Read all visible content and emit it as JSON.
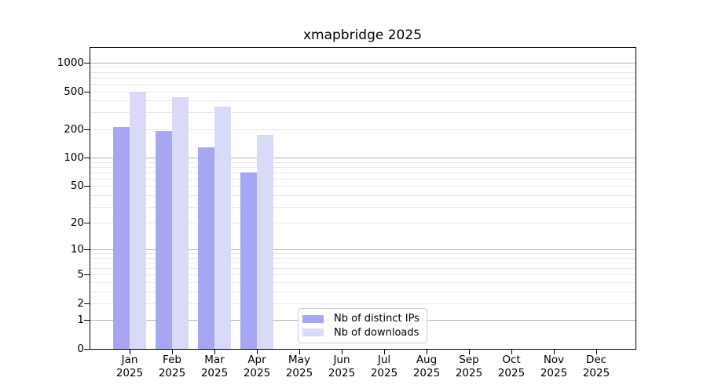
{
  "title": "xmapbridge 2025",
  "chart_data": {
    "type": "bar",
    "title": "xmapbridge 2025",
    "y_scale": "log10(1+x)",
    "ylim": [
      0,
      1000
    ],
    "grid": "horizontal, minor lines at 2-9 per decade, major lines at 1/10/100/1000",
    "legend_position": "inside bottom-center",
    "year": "2025",
    "categories": [
      "Jan",
      "Feb",
      "Mar",
      "Apr",
      "May",
      "Jun",
      "Jul",
      "Aug",
      "Sep",
      "Oct",
      "Nov",
      "Dec"
    ],
    "y_ticks": [
      0,
      1,
      2,
      5,
      10,
      20,
      50,
      100,
      200,
      500,
      1000
    ],
    "series": [
      {
        "name": "Nb of distinct IPs",
        "color": "#a6a6f2",
        "values": [
          210,
          190,
          128,
          70,
          null,
          null,
          null,
          null,
          null,
          null,
          null,
          null
        ]
      },
      {
        "name": "Nb of downloads",
        "color": "#d9d9f8",
        "values": [
          500,
          435,
          345,
          175,
          null,
          null,
          null,
          null,
          null,
          null,
          null,
          null
        ]
      }
    ],
    "colors": {
      "major_grid": "#b3b3b3",
      "minor_grid": "#e9e9e9",
      "axis": "#000000",
      "background": "#ffffff"
    }
  }
}
